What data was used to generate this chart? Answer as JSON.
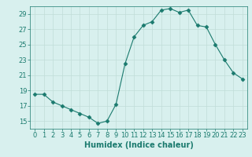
{
  "x": [
    0,
    1,
    2,
    3,
    4,
    5,
    6,
    7,
    8,
    9,
    10,
    11,
    12,
    13,
    14,
    15,
    16,
    17,
    18,
    19,
    20,
    21,
    22,
    23
  ],
  "y": [
    18.5,
    18.5,
    17.5,
    17.0,
    16.5,
    16.0,
    15.5,
    14.7,
    15.0,
    17.2,
    22.5,
    26.0,
    27.5,
    28.0,
    29.5,
    29.7,
    29.2,
    29.5,
    27.5,
    27.3,
    25.0,
    23.0,
    21.3,
    20.5
  ],
  "line_color": "#1a7a6e",
  "marker": "D",
  "marker_size": 2.5,
  "bg_color": "#d8f0ee",
  "grid_color": "#c0ddd8",
  "xlabel": "Humidex (Indice chaleur)",
  "xlim": [
    -0.5,
    23.5
  ],
  "ylim": [
    14.0,
    30.0
  ],
  "yticks": [
    15,
    17,
    19,
    21,
    23,
    25,
    27,
    29
  ],
  "xticks": [
    0,
    1,
    2,
    3,
    4,
    5,
    6,
    7,
    8,
    9,
    10,
    11,
    12,
    13,
    14,
    15,
    16,
    17,
    18,
    19,
    20,
    21,
    22,
    23
  ],
  "tick_color": "#1a7a6e",
  "label_fontsize": 7,
  "tick_fontsize": 6
}
